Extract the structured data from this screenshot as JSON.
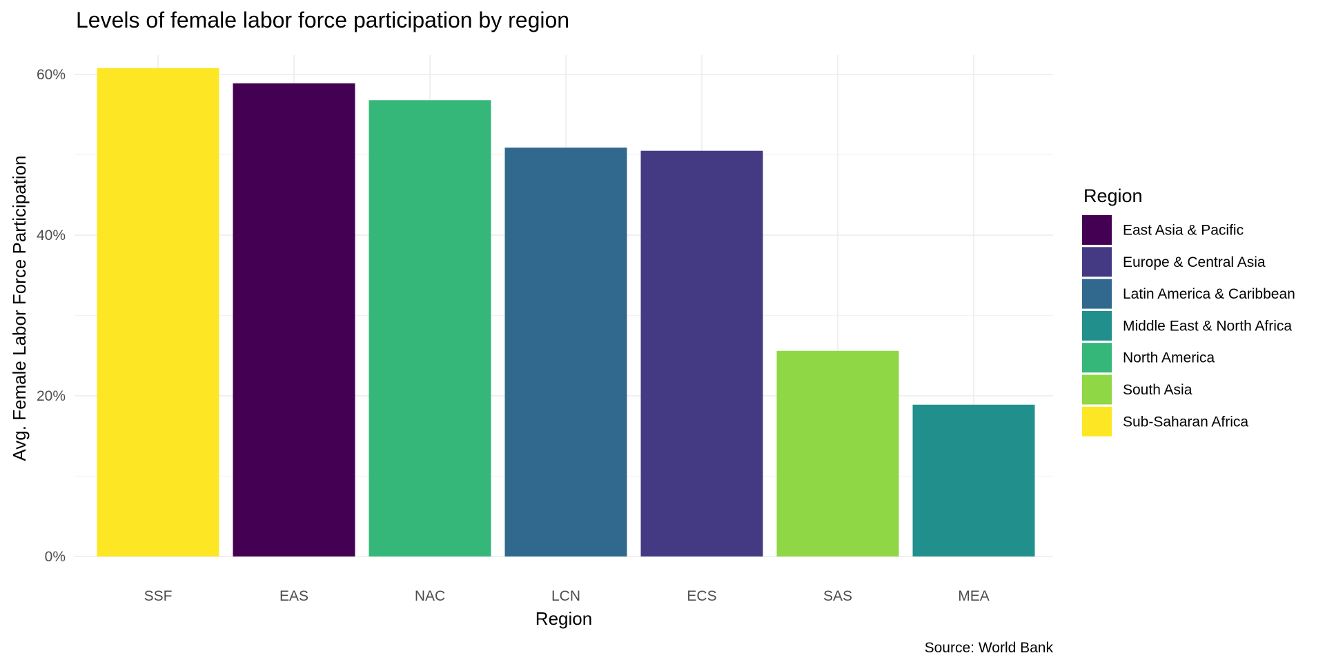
{
  "chart_data": {
    "type": "bar",
    "title": "Levels of female labor force participation by region",
    "xlabel": "Region",
    "ylabel": "Avg. Female Labor Force Participation",
    "caption": "Source: World Bank",
    "ylim": [
      0,
      0.6
    ],
    "yticks": [
      0,
      0.2,
      0.4,
      0.6
    ],
    "ytick_labels": [
      "0%",
      "20%",
      "40%",
      "60%"
    ],
    "grid": true,
    "legend": {
      "title": "Region",
      "position": "right",
      "entries": [
        {
          "label": "East Asia & Pacific",
          "color": "#440154"
        },
        {
          "label": "Europe & Central Asia",
          "color": "#443a83"
        },
        {
          "label": "Latin America & Caribbean",
          "color": "#31688e"
        },
        {
          "label": "Middle East & North Africa",
          "color": "#21908c"
        },
        {
          "label": "North America",
          "color": "#35b779"
        },
        {
          "label": "South Asia",
          "color": "#8fd744"
        },
        {
          "label": "Sub-Saharan Africa",
          "color": "#fde725"
        }
      ]
    },
    "categories": [
      "SSF",
      "EAS",
      "NAC",
      "LCN",
      "ECS",
      "SAS",
      "MEA"
    ],
    "values": [
      0.608,
      0.589,
      0.568,
      0.509,
      0.505,
      0.256,
      0.189
    ],
    "bar_colors": [
      "#fde725",
      "#440154",
      "#35b779",
      "#31688e",
      "#443a83",
      "#8fd744",
      "#21908c"
    ]
  }
}
